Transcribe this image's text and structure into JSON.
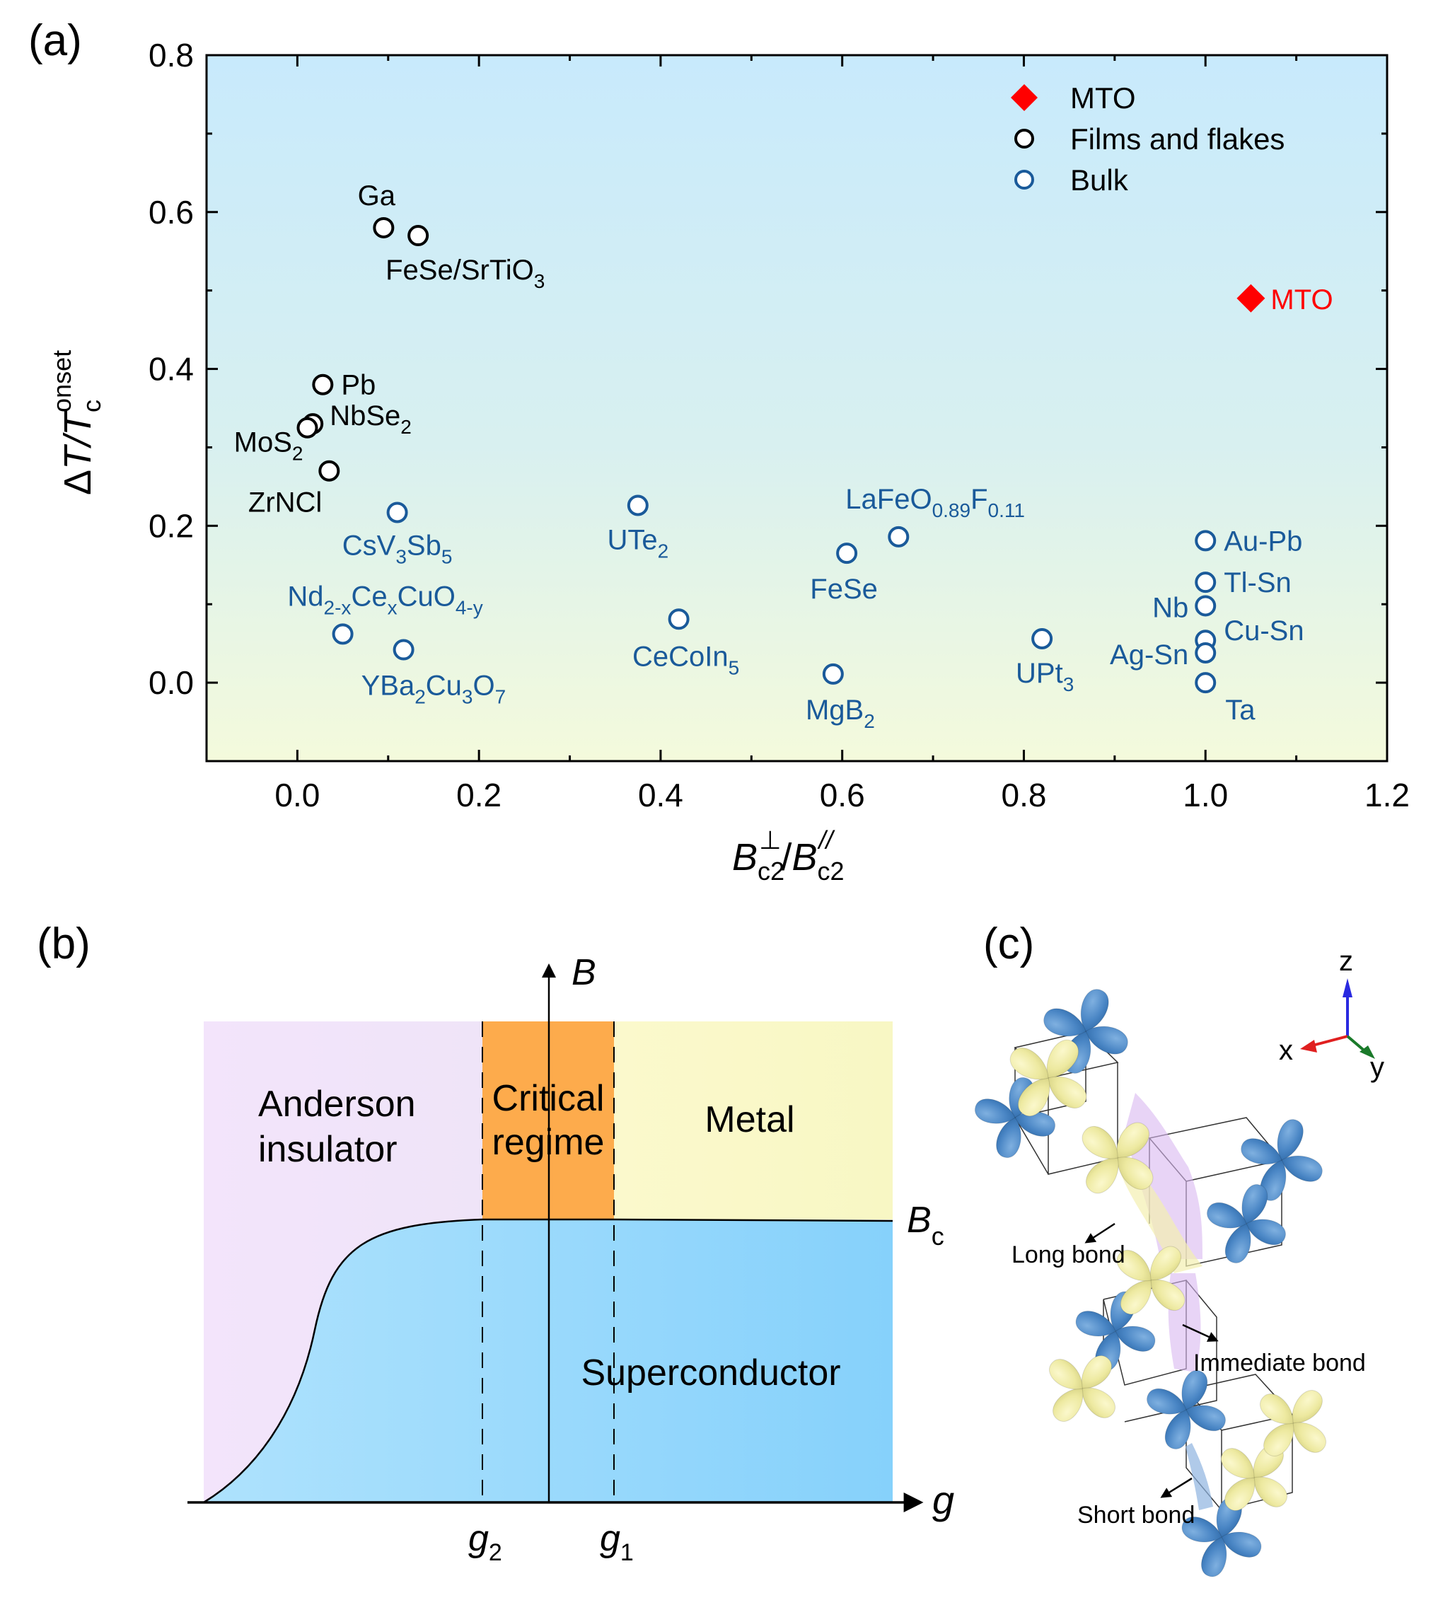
{
  "figure": {
    "panels": {
      "a": {
        "label": "(a)"
      },
      "b": {
        "label": "(b)"
      },
      "c": {
        "label": "(c)"
      }
    }
  },
  "colors": {
    "films": "#000000",
    "bulk": "#1a5a9a",
    "mto": "#ff0000",
    "bg_top": "#c8eafc",
    "bg_bottom": "#f4fadc",
    "anderson": "#f1e4fa",
    "critical": "#fdab4c",
    "metal": "#f9f8c8",
    "superconductor_left": "#a8e0fd",
    "superconductor_right": "#8dd3fb",
    "orbital_blue": "#4a86c5",
    "orbital_yellow": "#ede9a0",
    "axis_x": "#e02020",
    "axis_y": "#1a8a2a",
    "axis_z": "#2a2ae0"
  },
  "chart_data": [
    {
      "type": "scatter",
      "panel": "a",
      "title": "",
      "xlabel": {
        "main": "B",
        "sub1": "c2",
        "sup1": "⊥",
        "sep": "/",
        "main2": "B",
        "sub2": "c2",
        "sup2": "//"
      },
      "ylabel": {
        "prefix": "Δ",
        "main": "T/T",
        "sub": "c",
        "sup": "onset"
      },
      "xlim": [
        -0.1,
        1.2
      ],
      "ylim": [
        -0.1,
        0.8
      ],
      "xticks": [
        0.0,
        0.2,
        0.4,
        0.6,
        0.8,
        1.0,
        1.2
      ],
      "xtick_labels": [
        "0.0",
        "0.2",
        "0.4",
        "0.6",
        "0.8",
        "1.0",
        "1.2"
      ],
      "yticks": [
        0.0,
        0.2,
        0.4,
        0.6,
        0.8
      ],
      "ytick_labels": [
        "0.0",
        "0.2",
        "0.4",
        "0.6",
        "0.8"
      ],
      "grid": false,
      "legend": {
        "placement": "top-right",
        "entries": [
          {
            "name": "MTO",
            "marker": "diamond",
            "color": "#ff0000"
          },
          {
            "name": "Films and flakes",
            "marker": "open-circle",
            "color": "#000000"
          },
          {
            "name": "Bulk",
            "marker": "open-circle",
            "color": "#1a5a9a"
          }
        ]
      },
      "series": [
        {
          "name": "MTO",
          "marker": "diamond",
          "points": [
            {
              "label": "MTO",
              "x": 1.05,
              "y": 0.49,
              "label_pos": "right"
            }
          ]
        },
        {
          "name": "Films and flakes",
          "marker": "open-circle",
          "points": [
            {
              "label": "Ga",
              "x": 0.095,
              "y": 0.58,
              "label_pos": "above"
            },
            {
              "label": "FeSe/SrTiO",
              "sub": "3",
              "x": 0.133,
              "y": 0.57,
              "label_pos": "below-right"
            },
            {
              "label": "Pb",
              "x": 0.028,
              "y": 0.38,
              "label_pos": "right"
            },
            {
              "label": "NbSe",
              "sub": "2",
              "x": 0.017,
              "y": 0.33,
              "label_pos": "right"
            },
            {
              "label": "MoS",
              "sub": "2",
              "x": 0.011,
              "y": 0.325,
              "label_pos": "left"
            },
            {
              "label": "ZrNCl",
              "x": 0.035,
              "y": 0.27,
              "label_pos": "below-left"
            }
          ]
        },
        {
          "name": "Bulk",
          "marker": "open-circle",
          "points": [
            {
              "label": "CsV",
              "sub": "3",
              "label2": "Sb",
              "sub2": "5",
              "x": 0.11,
              "y": 0.217,
              "label_pos": "below"
            },
            {
              "label": "Nd",
              "sub": "2-x",
              "label2": "Ce",
              "sub2": "x",
              "label3": "CuO",
              "sub3": "4-y",
              "x": 0.05,
              "y": 0.062,
              "label_pos": "above"
            },
            {
              "label": "YBa",
              "sub": "2",
              "label2": "Cu",
              "sub2": "3",
              "label3": "O",
              "sub3": "7",
              "x": 0.117,
              "y": 0.042,
              "label_pos": "below-right"
            },
            {
              "label": "UTe",
              "sub": "2",
              "x": 0.375,
              "y": 0.226,
              "label_pos": "below"
            },
            {
              "label": "CeCoIn",
              "sub": "5",
              "x": 0.42,
              "y": 0.081,
              "label_pos": "below"
            },
            {
              "label": "FeSe",
              "x": 0.605,
              "y": 0.165,
              "label_pos": "below"
            },
            {
              "label": "LaFeO",
              "sub": "0.89",
              "label2": "F",
              "sub2": "0.11",
              "x": 0.662,
              "y": 0.186,
              "label_pos": "above-right"
            },
            {
              "label": "MgB",
              "sub": "2",
              "x": 0.59,
              "y": 0.011,
              "label_pos": "below"
            },
            {
              "label": "UPt",
              "sub": "3",
              "x": 0.82,
              "y": 0.056,
              "label_pos": "below"
            },
            {
              "label": "Au-Pb",
              "x": 1.0,
              "y": 0.181,
              "label_pos": "right"
            },
            {
              "label": "Tl-Sn",
              "x": 1.0,
              "y": 0.128,
              "label_pos": "right"
            },
            {
              "label": "Nb",
              "x": 1.0,
              "y": 0.098,
              "label_pos": "left"
            },
            {
              "label": "Cu-Sn",
              "x": 1.0,
              "y": 0.054,
              "label_pos": "right"
            },
            {
              "label": "Ag-Sn",
              "x": 1.0,
              "y": 0.038,
              "label_pos": "left"
            },
            {
              "label": "Ta",
              "x": 1.0,
              "y": 0.0,
              "label_pos": "below-right"
            }
          ]
        }
      ]
    },
    {
      "type": "diagram",
      "panel": "b",
      "x_axis_label": "g",
      "y_axis_label": "B",
      "boundary_label": {
        "main": "B",
        "sub": "c"
      },
      "tick_labels": [
        {
          "main": "g",
          "sub": "2"
        },
        {
          "main": "g",
          "sub": "1"
        }
      ],
      "regions": [
        {
          "name": "Anderson insulator",
          "lines": [
            "Anderson",
            "insulator"
          ]
        },
        {
          "name": "Critical regime",
          "lines": [
            "Critical",
            "regime"
          ]
        },
        {
          "name": "Metal",
          "lines": [
            "Metal"
          ]
        },
        {
          "name": "Superconductor",
          "lines": [
            "Superconductor"
          ]
        }
      ]
    }
  ],
  "panel_c": {
    "axes": {
      "x": "x",
      "y": "y",
      "z": "z"
    },
    "bond_labels": {
      "long": "Long bond",
      "intermediate": "Immediate bond",
      "short": "Short bond"
    }
  }
}
